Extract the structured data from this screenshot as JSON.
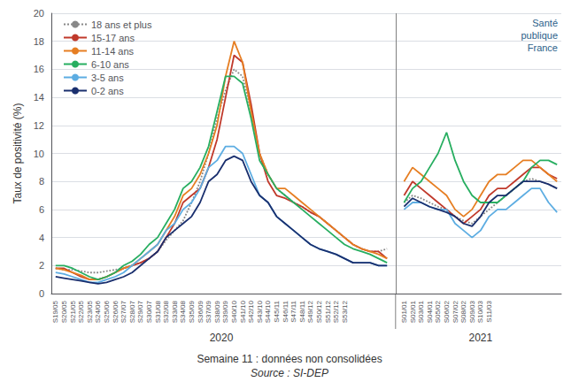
{
  "chart_data": {
    "type": "line",
    "y_label": "Taux de positivité (%)",
    "ylim": [
      0,
      20
    ],
    "yticks": [
      0,
      2,
      4,
      6,
      8,
      10,
      12,
      14,
      16,
      18,
      20
    ],
    "grid": true,
    "legend": "upper left",
    "annotations": [
      "2020",
      "2021",
      "Santé\npublique\nFrance",
      "Semaine 11 : données non consolidées",
      "Source : SI-DEP"
    ],
    "categories": [
      "S19/05",
      "S20/05",
      "S21/05",
      "S22/05",
      "S23/05",
      "S24/06",
      "S25/06",
      "S26/06",
      "S27/07",
      "S28/07",
      "S29/07",
      "S30/07",
      "S31/08",
      "S32/08",
      "S33/08",
      "S34/08",
      "S35/09",
      "S36/09",
      "S37/09",
      "S38/09",
      "S39/09",
      "S40/10",
      "S41/10",
      "S42/10",
      "S43/10",
      "S44/10",
      "S45/11",
      "S46/11",
      "S47/11",
      "S48/11",
      "S49/12",
      "S50/12",
      "S51/12",
      "S52/12",
      "S53/12",
      null,
      null,
      null,
      null,
      null,
      null,
      "S01/01",
      "S02/01",
      "S03/01",
      "S04/01",
      "S05/02",
      "S06/02",
      "S07/02",
      "S08/02",
      "S09/03",
      "S10/03",
      "S11/03",
      null,
      null,
      null,
      null,
      null,
      null,
      null,
      null
    ],
    "series": [
      {
        "name": "18 ans et plus",
        "color": "#888888",
        "line_style": "dotted",
        "values": [
          1.8,
          1.7,
          1.7,
          1.6,
          1.5,
          1.5,
          1.6,
          1.7,
          1.8,
          2.0,
          2.2,
          2.5,
          3.0,
          3.8,
          4.5,
          5.2,
          6.5,
          8.0,
          10.0,
          12.5,
          14.5,
          16.0,
          15.5,
          13.0,
          10.0,
          8.5,
          7.5,
          7.0,
          6.5,
          6.2,
          5.8,
          5.5,
          5.0,
          4.5,
          4.0,
          3.5,
          3.2,
          3.0,
          3.0,
          3.2,
          null,
          6.5,
          7.0,
          6.8,
          6.5,
          6.2,
          6.0,
          5.5,
          5.2,
          5.0,
          5.5,
          6.0,
          6.5,
          7.0,
          7.5,
          8.0,
          8.2,
          8.0,
          7.8,
          7.5
        ]
      },
      {
        "name": "15-17 ans",
        "color": "#c0392b",
        "line_style": "solid",
        "values": [
          1.8,
          1.8,
          1.5,
          1.2,
          1.0,
          1.0,
          1.2,
          1.5,
          1.8,
          2.0,
          2.2,
          2.5,
          3.0,
          4.0,
          5.0,
          6.5,
          7.0,
          7.5,
          9.0,
          11.0,
          14.0,
          17.0,
          16.5,
          13.5,
          10.0,
          8.0,
          7.0,
          6.8,
          6.5,
          6.2,
          5.8,
          5.5,
          5.0,
          4.5,
          4.0,
          3.5,
          3.2,
          3.0,
          3.0,
          2.5,
          null,
          7.0,
          8.0,
          7.5,
          7.0,
          6.5,
          6.0,
          5.5,
          5.0,
          5.5,
          6.0,
          7.0,
          7.5,
          7.5,
          8.0,
          8.5,
          9.0,
          9.0,
          8.5,
          8.2
        ]
      },
      {
        "name": "11-14 ans",
        "color": "#e67e22",
        "line_style": "solid",
        "values": [
          1.8,
          1.7,
          1.5,
          1.3,
          1.0,
          1.0,
          1.2,
          1.5,
          1.8,
          2.0,
          2.5,
          3.0,
          3.5,
          4.5,
          5.5,
          7.0,
          7.5,
          8.5,
          10.0,
          12.0,
          15.5,
          18.0,
          16.5,
          13.0,
          10.0,
          8.5,
          7.5,
          7.5,
          7.0,
          6.5,
          6.0,
          5.5,
          5.0,
          4.5,
          4.0,
          3.5,
          3.2,
          3.0,
          2.8,
          2.5,
          null,
          8.0,
          9.0,
          8.5,
          8.0,
          7.5,
          7.0,
          6.0,
          5.5,
          6.0,
          7.0,
          8.0,
          8.5,
          8.5,
          9.0,
          9.5,
          9.5,
          9.0,
          8.5,
          8.0
        ]
      },
      {
        "name": "6-10 ans",
        "color": "#27ae60",
        "line_style": "solid",
        "values": [
          2.0,
          2.0,
          1.8,
          1.5,
          1.2,
          1.0,
          1.2,
          1.5,
          2.0,
          2.3,
          2.8,
          3.5,
          4.0,
          5.0,
          6.0,
          7.5,
          8.0,
          9.0,
          10.5,
          13.0,
          15.5,
          15.5,
          15.0,
          12.5,
          9.5,
          8.5,
          7.5,
          7.0,
          6.5,
          6.0,
          5.5,
          5.0,
          4.5,
          4.0,
          3.5,
          3.2,
          3.0,
          2.8,
          2.5,
          2.2,
          null,
          6.5,
          7.5,
          8.0,
          9.0,
          10.0,
          11.5,
          9.5,
          8.0,
          7.0,
          6.5,
          6.5,
          6.5,
          7.0,
          7.5,
          8.0,
          9.0,
          9.5,
          9.5,
          9.2
        ]
      },
      {
        "name": "3-5 ans",
        "color": "#5dade2",
        "line_style": "solid",
        "values": [
          1.5,
          1.4,
          1.2,
          1.0,
          0.8,
          0.8,
          1.0,
          1.2,
          1.5,
          2.0,
          2.5,
          3.0,
          3.5,
          4.5,
          5.0,
          6.0,
          6.5,
          7.5,
          9.0,
          9.5,
          10.5,
          10.5,
          10.0,
          8.5,
          7.0,
          6.5,
          5.5,
          5.0,
          4.5,
          4.0,
          3.5,
          3.2,
          3.0,
          2.8,
          2.5,
          2.2,
          2.2,
          2.2,
          2.0,
          2.0,
          null,
          6.0,
          6.5,
          6.5,
          6.2,
          6.0,
          6.0,
          5.0,
          4.5,
          4.0,
          4.5,
          5.5,
          6.0,
          6.0,
          6.5,
          7.0,
          7.5,
          7.5,
          6.5,
          5.8
        ]
      },
      {
        "name": "0-2 ans",
        "color": "#1a2f6e",
        "line_style": "solid",
        "values": [
          1.2,
          1.1,
          1.0,
          0.9,
          0.8,
          0.7,
          0.8,
          1.0,
          1.2,
          1.5,
          2.0,
          2.5,
          3.0,
          4.0,
          4.5,
          5.0,
          5.5,
          6.5,
          8.0,
          8.5,
          9.5,
          9.8,
          9.5,
          8.0,
          7.0,
          6.5,
          5.5,
          5.0,
          4.5,
          4.0,
          3.5,
          3.2,
          3.0,
          2.8,
          2.5,
          2.2,
          2.2,
          2.2,
          2.0,
          2.0,
          null,
          6.2,
          6.8,
          6.5,
          6.2,
          6.0,
          5.8,
          5.5,
          5.0,
          4.8,
          5.5,
          6.5,
          7.0,
          7.0,
          7.5,
          8.0,
          8.0,
          8.0,
          7.8,
          7.5
        ]
      }
    ]
  }
}
